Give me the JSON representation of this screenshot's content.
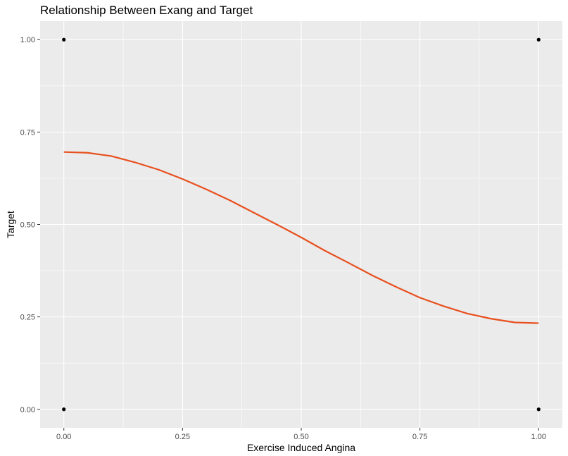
{
  "chart_data": {
    "type": "scatter",
    "title": "Relationship Between Exang and Target",
    "xlabel": "Exercise Induced Angina",
    "ylabel": "Target",
    "xlim": [
      -0.05,
      1.05
    ],
    "ylim": [
      -0.05,
      1.05
    ],
    "x_ticks": [
      0.0,
      0.25,
      0.5,
      0.75,
      1.0
    ],
    "x_tick_labels": [
      "0.00",
      "0.25",
      "0.50",
      "0.75",
      "1.00"
    ],
    "y_ticks": [
      0.0,
      0.25,
      0.5,
      0.75,
      1.0
    ],
    "y_tick_labels": [
      "0.00",
      "0.25",
      "0.50",
      "0.75",
      "1.00"
    ],
    "grid": true,
    "points": [
      {
        "x": 0,
        "y": 1
      },
      {
        "x": 1,
        "y": 1
      },
      {
        "x": 0,
        "y": 0
      },
      {
        "x": 1,
        "y": 0
      }
    ],
    "smooth_line": {
      "color": "#e8501e",
      "x": [
        0.0,
        0.05,
        0.1,
        0.15,
        0.2,
        0.25,
        0.3,
        0.35,
        0.4,
        0.45,
        0.5,
        0.55,
        0.6,
        0.65,
        0.7,
        0.75,
        0.8,
        0.85,
        0.9,
        0.95,
        1.0
      ],
      "y": [
        0.696,
        0.694,
        0.685,
        0.668,
        0.648,
        0.623,
        0.595,
        0.565,
        0.532,
        0.499,
        0.465,
        0.429,
        0.396,
        0.362,
        0.331,
        0.302,
        0.279,
        0.259,
        0.245,
        0.235,
        0.233
      ]
    },
    "colors": {
      "panel_background": "#ebebeb",
      "grid_major": "#ffffff",
      "points": "#000000",
      "tick_text": "#4d4d4d"
    }
  }
}
